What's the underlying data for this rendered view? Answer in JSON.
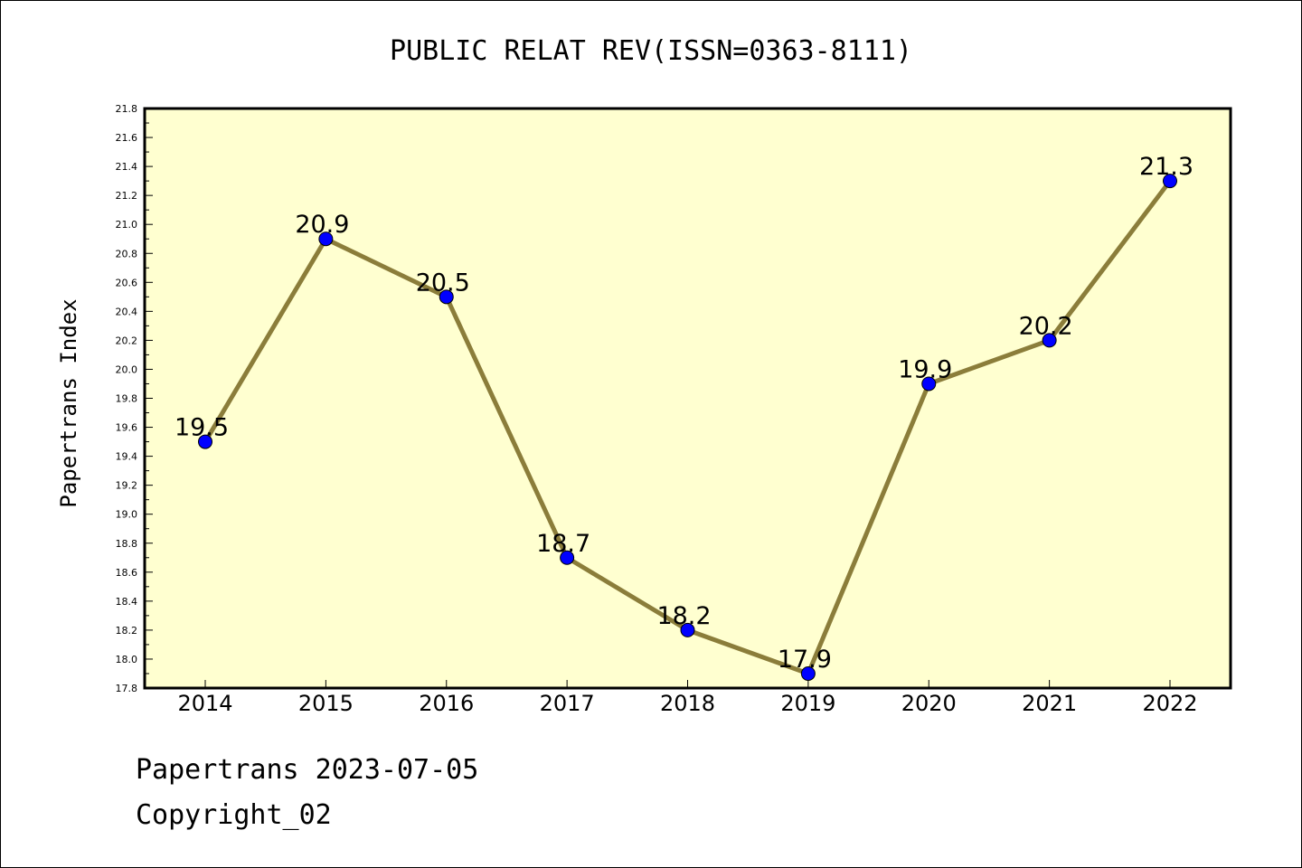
{
  "chart_data": {
    "type": "line",
    "title": "PUBLIC RELAT REV(ISSN=0363-8111)",
    "ylabel": "Papertrans Index",
    "xlabel": "",
    "categories": [
      "2014",
      "2015",
      "2016",
      "2017",
      "2018",
      "2019",
      "2020",
      "2021",
      "2022"
    ],
    "series": [
      {
        "values": [
          19.5,
          20.9,
          20.5,
          18.7,
          18.2,
          17.9,
          19.9,
          20.2,
          21.3
        ],
        "data_labels": [
          "19.5",
          "20.9",
          "20.5",
          "18.7",
          "18.2",
          "17.9",
          "19.9",
          "20.2",
          "21.3"
        ]
      }
    ],
    "ylim": [
      17.8,
      21.8
    ],
    "yticks": [
      "17.8",
      "18.0",
      "18.2",
      "18.4",
      "18.6",
      "18.8",
      "19.0",
      "19.2",
      "19.4",
      "19.6",
      "19.8",
      "20.0",
      "20.2",
      "20.4",
      "20.6",
      "20.8",
      "21.0",
      "21.2",
      "21.4",
      "21.6",
      "21.8"
    ],
    "grid": false,
    "colors": {
      "plot_background": "#ffffd0",
      "line": "#8b7d3a",
      "marker": "#0000ff"
    }
  },
  "footer": {
    "line1": "Papertrans 2023-07-05",
    "line2": "Copyright_02"
  }
}
